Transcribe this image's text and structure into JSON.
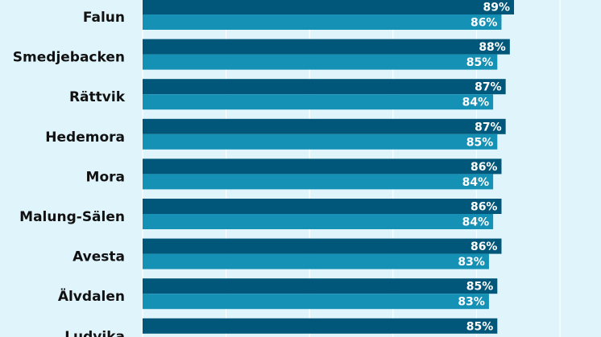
{
  "chart_data": {
    "type": "bar",
    "orientation": "horizontal",
    "categories": [
      "Falun",
      "Smedjebacken",
      "Rättvik",
      "Hedemora",
      "Mora",
      "Malung-Sälen",
      "Avesta",
      "Älvdalen",
      "Ludvika"
    ],
    "series": [
      {
        "values": [
          89,
          88,
          87,
          87,
          86,
          86,
          86,
          85,
          85
        ]
      },
      {
        "values": [
          86,
          85,
          84,
          85,
          84,
          84,
          83,
          83,
          null
        ]
      }
    ],
    "value_labels": [
      [
        "89%",
        "88%",
        "87%",
        "87%",
        "86%",
        "86%",
        "86%",
        "85%",
        "85%"
      ],
      [
        "86%",
        "85%",
        "84%",
        "85%",
        "84%",
        "84%",
        "83%",
        "83%",
        ""
      ]
    ],
    "xlim": [
      0,
      100
    ],
    "grid": true,
    "colors": {
      "background": "#dff4fb",
      "series_1": "#00577a",
      "series_2": "#1591b6",
      "grid": "#ffffff",
      "label_text": "#111111",
      "value_text": "#ffffff"
    }
  }
}
